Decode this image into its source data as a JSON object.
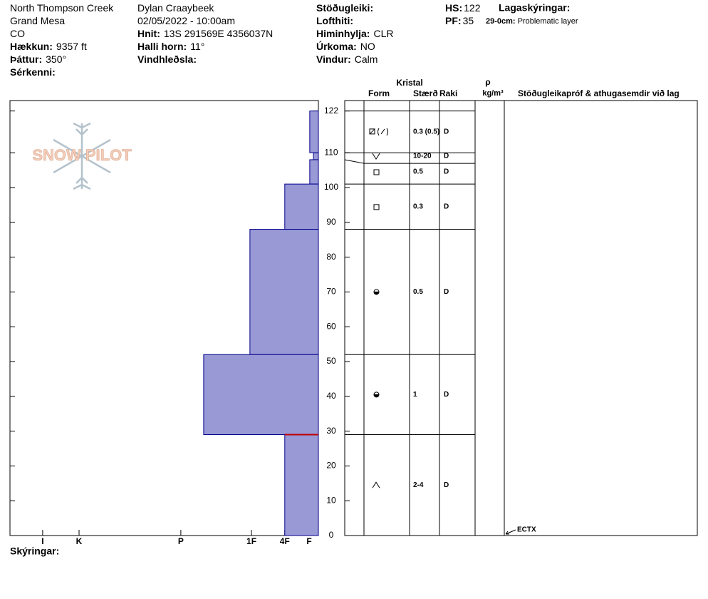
{
  "header": {
    "columns": [
      [
        {
          "value": "North Thompson Creek"
        },
        {
          "value": "Grand Mesa"
        },
        {
          "value": "CO"
        },
        {
          "label": "Hækkun:",
          "value": "9357 ft"
        },
        {
          "label": "Þáttur:",
          "value": "350°"
        },
        {
          "label": "Sérkenni:"
        }
      ],
      [
        {
          "value": "Dylan Craaybeek"
        },
        {
          "value": "02/05/2022 - 10:00am"
        },
        {
          "label": "Hnit:",
          "value": "13S 291569E 4356037N"
        },
        {
          "label": "Halli horn:",
          "value": "11°"
        },
        {
          "label": "Vindhleðsla:"
        }
      ],
      [
        {
          "label": "Stöðugleiki:"
        },
        {
          "label": "Lofthiti:"
        },
        {
          "label": "Himinhylja:",
          "value": "CLR"
        },
        {
          "label": "Úrkoma:",
          "value": "NO"
        },
        {
          "label": "Vindur:",
          "value": "Calm"
        }
      ],
      [
        {
          "label": "HS:",
          "value": "122"
        },
        {
          "label": "PF:",
          "value": "35"
        }
      ]
    ],
    "layer_notes_title": "Lagaskýringar:",
    "layer_notes": [
      {
        "label": "29-0cm:",
        "value": "Problematic layer"
      }
    ]
  },
  "logo": "SNOW PILOT",
  "footer": "Skýringar:",
  "chart_data": {
    "type": "profile",
    "color": "#9999d6",
    "ylim": [
      0,
      125
    ],
    "yticks": [
      0,
      10,
      20,
      30,
      40,
      50,
      60,
      70,
      80,
      90,
      100,
      110,
      122
    ],
    "xlim": [
      0,
      100
    ],
    "xticks": [
      {
        "value": 89.4,
        "label": "I"
      },
      {
        "value": 77.6,
        "label": "K"
      },
      {
        "value": 44.6,
        "label": "P"
      },
      {
        "value": 21.7,
        "label": "1F"
      },
      {
        "value": 10.9,
        "label": "4F"
      },
      {
        "value": 3,
        "label": "F"
      }
    ],
    "table_headers": {
      "crystal": "Kristal",
      "form": "Form",
      "size": "Stærð",
      "moisture": "Raki",
      "density": "ρ",
      "density_unit": "kg/m³",
      "tests": "Stöðugleikapróf & athugasemdir við lag"
    },
    "layers": [
      {
        "top": 122,
        "bottom": 110,
        "hardness": 2.8,
        "size": "0.3 (0.5)",
        "moisture": "D"
      },
      {
        "top": 110,
        "bottom": 108,
        "hardness": 1.6,
        "size": "10-20",
        "moisture": "D"
      },
      {
        "top": 108,
        "bottom": 101,
        "hardness": 2.8,
        "size": "0.5",
        "moisture": "D"
      },
      {
        "top": 101,
        "bottom": 88,
        "hardness": 10.9,
        "size": "0.3",
        "moisture": "D"
      },
      {
        "top": 88,
        "bottom": 52,
        "hardness": 22.2,
        "size": "0.5",
        "moisture": "D"
      },
      {
        "top": 52,
        "bottom": 29,
        "hardness": 37.2,
        "size": "1",
        "moisture": "D"
      },
      {
        "top": 29,
        "bottom": 0,
        "hardness": 10.9,
        "size": "2-4",
        "moisture": "D"
      }
    ],
    "tests": [
      "ECTX"
    ]
  }
}
